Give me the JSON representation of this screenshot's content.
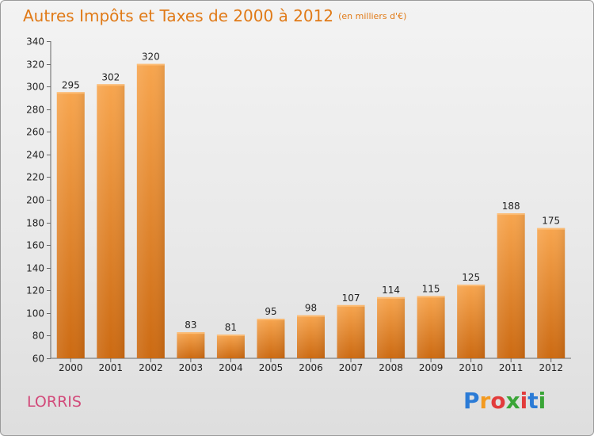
{
  "header": {
    "title": "Autres Impôts et Taxes de 2000 à 2012",
    "unit": "(en milliers d'€)"
  },
  "commune": "LORRIS",
  "logo": {
    "letters": [
      "P",
      "r",
      "o",
      "x",
      "i",
      "t",
      "i"
    ],
    "colors": [
      "#2b7bd6",
      "#f39a1f",
      "#e23b3b",
      "#3aa537",
      "#e23b3b",
      "#2b7bd6",
      "#3aa537"
    ]
  },
  "colors": {
    "bar_light": "#f7a54e",
    "bar_dark": "#cc6a12",
    "axis": "#666666",
    "grid": "#dcdcdc"
  },
  "chart_data": {
    "type": "bar",
    "title": "Autres Impôts et Taxes de 2000 à 2012",
    "subtitle": "(en milliers d'€)",
    "xlabel": "",
    "ylabel": "",
    "categories": [
      "2000",
      "2001",
      "2002",
      "2003",
      "2004",
      "2005",
      "2006",
      "2007",
      "2008",
      "2009",
      "2010",
      "2011",
      "2012"
    ],
    "values": [
      295,
      302,
      320,
      83,
      81,
      95,
      98,
      107,
      114,
      115,
      125,
      188,
      175
    ],
    "ylim": [
      60,
      340
    ],
    "yticks": [
      60,
      80,
      100,
      120,
      140,
      160,
      180,
      200,
      220,
      240,
      260,
      280,
      300,
      320,
      340
    ],
    "grid": false,
    "legend": "none"
  }
}
